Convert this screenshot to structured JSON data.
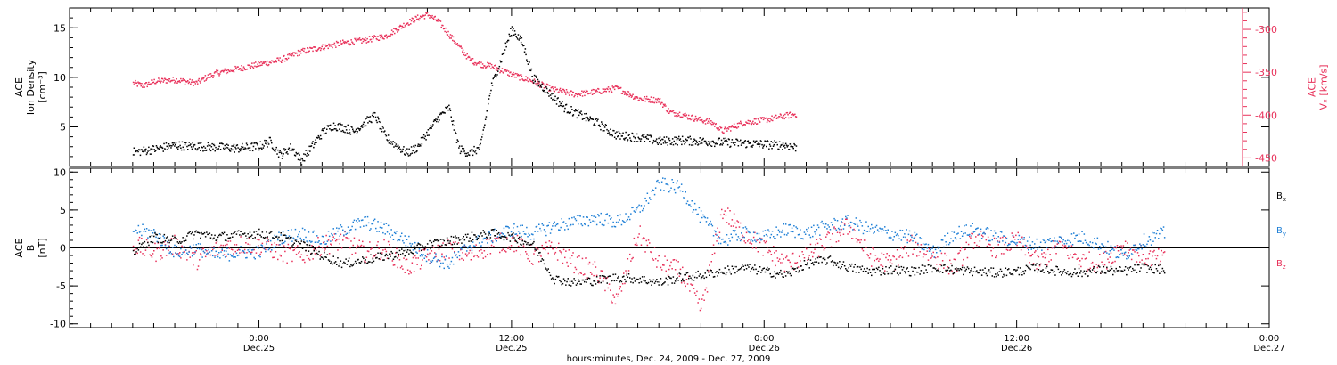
{
  "chart_data": [
    {
      "type": "scatter",
      "panel": "top",
      "ylabel_lines": [
        "ACE",
        "Ion Density",
        "[cm⁻³]"
      ],
      "ylim": [
        1,
        17
      ],
      "yticks": [
        5,
        10,
        15
      ],
      "y2label_lines": [
        "ACE",
        "Vₓ [km/s]"
      ],
      "y2lim": [
        -460,
        -275
      ],
      "y2ticks": [
        -450,
        -400,
        -350,
        -300
      ],
      "series": [
        {
          "label": "Ion density",
          "color": "#000000",
          "axis": "left",
          "x": [
            0,
            1,
            2,
            3,
            4,
            5,
            6,
            6.5,
            7,
            7.5,
            8,
            9,
            9.5,
            10,
            10.5,
            11,
            11.5,
            12,
            12.5,
            13,
            13.5,
            14,
            14.5,
            15,
            15.5,
            16,
            16.5,
            17,
            17.5,
            18,
            18.5,
            19,
            19.5,
            20,
            20.5,
            21,
            21.5,
            22,
            22.5,
            23,
            24,
            25,
            26,
            27,
            28,
            29,
            30,
            31,
            31.5
          ],
          "y": [
            2.5,
            2.8,
            3.2,
            3.1,
            3.0,
            2.9,
            3.1,
            3.6,
            2.2,
            3.0,
            1.7,
            4.5,
            5.2,
            5.0,
            4.6,
            5.5,
            6.2,
            4.0,
            3.2,
            2.4,
            3.0,
            4.5,
            6.0,
            7.0,
            2.8,
            2.4,
            3.0,
            9.0,
            12.0,
            15.0,
            13.5,
            10.0,
            9.0,
            8.0,
            7.0,
            6.5,
            6.0,
            5.5,
            4.8,
            4.2,
            4.0,
            3.6,
            3.7,
            3.6,
            3.5,
            3.4,
            3.3,
            3.2,
            3.0
          ]
        },
        {
          "label": "Vx",
          "color": "#e8315a",
          "axis": "right",
          "x": [
            0,
            0.5,
            1,
            2,
            3,
            3.5,
            4,
            5,
            6,
            7,
            8,
            9,
            10,
            11,
            12,
            13,
            13.5,
            14,
            14.5,
            15,
            15.5,
            16,
            16.5,
            17,
            18,
            19,
            20,
            21,
            22,
            23,
            24,
            25,
            25.5,
            26,
            26.5,
            27,
            27.5,
            28,
            29,
            30,
            31,
            31.5
          ],
          "y": [
            -362,
            -365,
            -360,
            -358,
            -362,
            -355,
            -350,
            -345,
            -340,
            -335,
            -325,
            -320,
            -315,
            -312,
            -307,
            -292,
            -286,
            -282,
            -290,
            -305,
            -320,
            -335,
            -340,
            -342,
            -352,
            -360,
            -370,
            -375,
            -372,
            -368,
            -380,
            -382,
            -396,
            -398,
            -402,
            -405,
            -408,
            -418,
            -408,
            -405,
            -400,
            -398
          ]
        }
      ]
    },
    {
      "type": "scatter",
      "panel": "bottom",
      "ylabel_lines": [
        "ACE",
        "B",
        "[nT]"
      ],
      "ylim": [
        -10.5,
        10.5
      ],
      "yticks": [
        -10,
        -5,
        0,
        5,
        10
      ],
      "legend": [
        "Bx",
        "By",
        "Bz"
      ],
      "legend_placement": "right",
      "xticks": [
        {
          "hour": 6,
          "time": "0:00",
          "date": "Dec.25"
        },
        {
          "hour": 18,
          "time": "12:00",
          "date": "Dec.25"
        },
        {
          "hour": 30,
          "time": "0:00",
          "date": "Dec.26"
        },
        {
          "hour": 42,
          "time": "12:00",
          "date": "Dec.26"
        },
        {
          "hour": 54,
          "time": "0:00",
          "date": "Dec.27"
        }
      ],
      "xlabel": "hours:minutes, Dec. 24, 2009 - Dec. 27, 2009",
      "xlim_hours": [
        -3,
        54
      ],
      "series": [
        {
          "label": "Bx",
          "color": "#000000",
          "x": [
            0,
            1,
            2,
            3,
            4,
            5,
            6,
            7,
            8,
            9,
            10,
            11,
            12,
            13,
            14,
            15,
            16,
            17,
            18,
            19,
            20,
            21,
            22,
            23,
            24,
            25,
            26,
            27,
            28,
            29,
            30,
            31,
            32,
            33,
            34,
            35,
            36,
            37,
            38,
            39,
            40,
            41,
            42,
            43,
            44,
            45,
            46,
            47,
            48,
            49
          ],
          "y": [
            -0.5,
            1.5,
            1.0,
            2.0,
            1.5,
            1.8,
            2.0,
            1.5,
            0.5,
            -1.0,
            -2.0,
            -1.5,
            -1.0,
            -0.5,
            0.5,
            1.0,
            1.5,
            2.0,
            1.5,
            0.5,
            -4.0,
            -4.5,
            -4.2,
            -3.8,
            -4.0,
            -4.5,
            -3.8,
            -3.5,
            -3.0,
            -2.5,
            -3.0,
            -3.5,
            -2.0,
            -1.5,
            -2.5,
            -3.0,
            -2.8,
            -3.0,
            -2.5,
            -2.8,
            -3.0,
            -3.2,
            -3.0,
            -2.5,
            -3.0,
            -3.2,
            -2.8,
            -3.0,
            -2.5,
            -2.8
          ]
        },
        {
          "label": "By",
          "color": "#1e7fd6",
          "x": [
            0,
            1,
            2,
            3,
            4,
            5,
            6,
            7,
            8,
            9,
            10,
            11,
            12,
            13,
            14,
            15,
            16,
            17,
            18,
            19,
            20,
            21,
            22,
            23,
            24,
            25,
            26,
            27,
            28,
            29,
            30,
            31,
            32,
            33,
            34,
            35,
            36,
            37,
            38,
            39,
            40,
            41,
            42,
            43,
            44,
            45,
            46,
            47,
            48,
            49
          ],
          "y": [
            2.5,
            2.0,
            -0.5,
            0.0,
            -1.0,
            -0.5,
            -0.5,
            1.5,
            2.0,
            1.0,
            2.5,
            3.5,
            2.5,
            1.0,
            -1.0,
            -2.0,
            0.5,
            1.5,
            2.5,
            2.0,
            3.0,
            3.5,
            4.0,
            3.5,
            5.0,
            8.5,
            8.0,
            4.0,
            1.0,
            2.0,
            1.5,
            2.5,
            2.0,
            3.0,
            3.5,
            2.5,
            2.0,
            1.5,
            -0.5,
            2.0,
            2.5,
            1.5,
            1.0,
            0.5,
            1.0,
            1.5,
            0.5,
            -1.0,
            1.0,
            2.0
          ]
        },
        {
          "label": "Bz",
          "color": "#e8315a",
          "x": [
            0,
            1,
            2,
            3,
            4,
            5,
            6,
            7,
            8,
            9,
            10,
            11,
            12,
            13,
            14,
            15,
            16,
            17,
            18,
            19,
            20,
            21,
            22,
            23,
            24,
            25,
            26,
            27,
            28,
            29,
            30,
            31,
            32,
            33,
            34,
            35,
            36,
            37,
            38,
            39,
            40,
            41,
            42,
            43,
            44,
            45,
            46,
            47,
            48,
            49
          ],
          "y": [
            0.5,
            -0.5,
            0.5,
            -1.5,
            0.0,
            0.5,
            0.5,
            -0.5,
            -1.0,
            0.5,
            1.0,
            -0.5,
            0.0,
            -2.5,
            -1.0,
            0.0,
            -1.0,
            0.5,
            1.0,
            -1.0,
            0.0,
            -2.0,
            -3.0,
            -7.0,
            2.0,
            -2.0,
            -3.0,
            -8.0,
            5.0,
            2.0,
            0.0,
            -2.0,
            -1.0,
            1.0,
            3.0,
            -1.0,
            -2.0,
            0.5,
            -1.0,
            -2.5,
            1.5,
            0.0,
            1.0,
            -2.0,
            0.5,
            -1.5,
            -2.0,
            0.5,
            -1.0,
            -1.5
          ]
        }
      ]
    }
  ]
}
